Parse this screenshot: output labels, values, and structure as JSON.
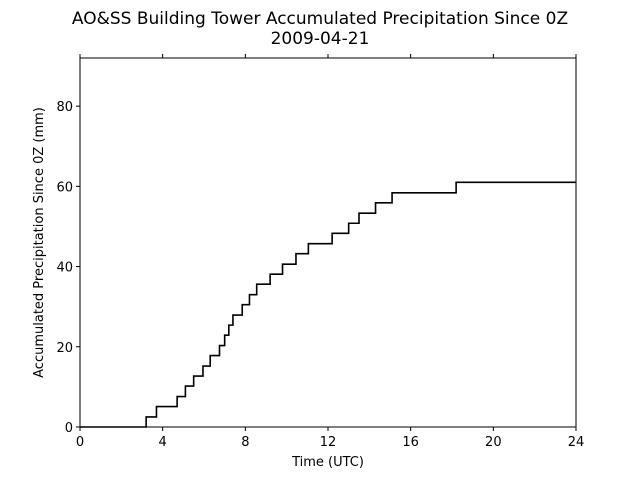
{
  "chart_data": {
    "type": "line",
    "title": "AO&SS Building Tower Accumulated Precipitation Since 0Z",
    "subtitle": "2009-04-21",
    "xlabel": "Time (UTC)",
    "ylabel": "Accumulated Precipitation Since 0Z (mm)",
    "xlim": [
      0,
      24
    ],
    "ylim": [
      0,
      92
    ],
    "xticks": [
      0,
      4,
      8,
      12,
      16,
      20,
      24
    ],
    "yticks": [
      0,
      20,
      40,
      60,
      80
    ],
    "grid": false,
    "step": "post",
    "line_color": "#000000",
    "series": [
      {
        "x": [
          0,
          3.2,
          3.7,
          4.7,
          5.1,
          5.5,
          5.95,
          6.3,
          6.75,
          7.0,
          7.2,
          7.4,
          7.85,
          8.2,
          8.55,
          9.2,
          9.8,
          10.45,
          11.05,
          12.2,
          13.0,
          13.5,
          14.3,
          15.1,
          18.2,
          24
        ],
        "y": [
          0,
          2.5,
          5.1,
          7.6,
          10.2,
          12.7,
          15.2,
          17.8,
          20.3,
          22.9,
          25.4,
          27.9,
          30.5,
          33.0,
          35.6,
          38.1,
          40.6,
          43.2,
          45.7,
          48.3,
          50.8,
          53.3,
          55.9,
          58.4,
          61.0,
          61.0
        ]
      }
    ]
  }
}
